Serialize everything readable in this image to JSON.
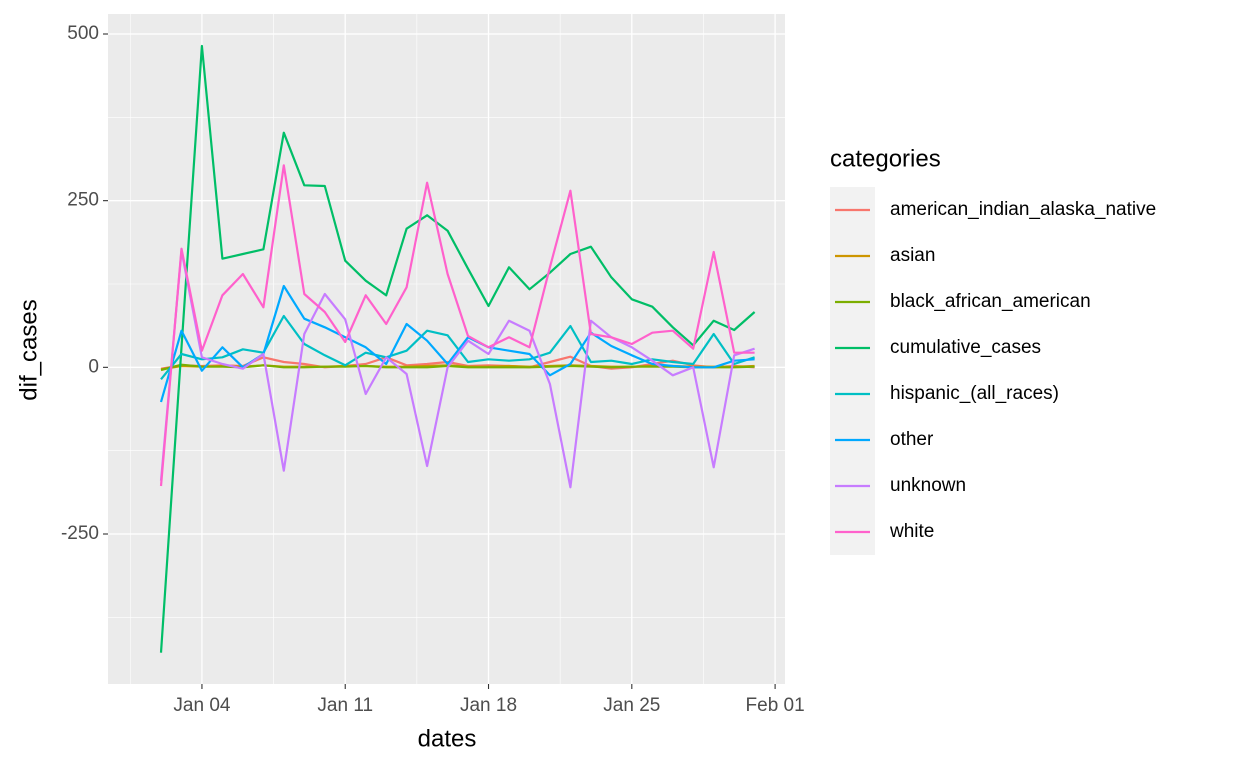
{
  "chart_data": {
    "type": "line",
    "x_label": "dates",
    "y_label": "dif_cases",
    "legend_title": "categories",
    "legend_position": "right",
    "grid": true,
    "x": [
      "Jan 02",
      "Jan 03",
      "Jan 04",
      "Jan 05",
      "Jan 06",
      "Jan 07",
      "Jan 08",
      "Jan 09",
      "Jan 10",
      "Jan 11",
      "Jan 12",
      "Jan 13",
      "Jan 14",
      "Jan 15",
      "Jan 16",
      "Jan 17",
      "Jan 18",
      "Jan 19",
      "Jan 20",
      "Jan 21",
      "Jan 22",
      "Jan 23",
      "Jan 24",
      "Jan 25",
      "Jan 26",
      "Jan 27",
      "Jan 28",
      "Jan 29",
      "Jan 30",
      "Jan 31"
    ],
    "xticks": [
      "Jan 04",
      "Jan 11",
      "Jan 18",
      "Jan 25",
      "Feb 01"
    ],
    "ylim": [
      -475,
      530
    ],
    "yticks": [
      -250,
      0,
      250,
      500
    ],
    "series": [
      {
        "name": "american_indian_alaska_native",
        "color": "#F8766D",
        "values": [
          -2,
          3,
          2,
          3,
          2,
          15,
          8,
          5,
          0,
          2,
          5,
          15,
          3,
          5,
          8,
          2,
          3,
          2,
          0,
          8,
          16,
          2,
          -2,
          0,
          5,
          10,
          3,
          0,
          2,
          0
        ]
      },
      {
        "name": "asian",
        "color": "#CD9600",
        "values": [
          -3,
          2,
          1,
          2,
          1,
          3,
          1,
          1,
          1,
          2,
          2,
          1,
          1,
          2,
          3,
          1,
          1,
          2,
          1,
          2,
          3,
          2,
          1,
          1,
          2,
          2,
          1,
          1,
          1,
          2
        ]
      },
      {
        "name": "black_african_american",
        "color": "#7CAE00",
        "values": [
          -4,
          4,
          1,
          1,
          0,
          3,
          0,
          0,
          1,
          1,
          2,
          0,
          0,
          0,
          2,
          0,
          0,
          0,
          0,
          1,
          2,
          1,
          0,
          1,
          1,
          1,
          0,
          0,
          0,
          1
        ]
      },
      {
        "name": "cumulative_cases",
        "color": "#00BE67",
        "values": [
          -428,
          30,
          482,
          163,
          170,
          177,
          352,
          273,
          272,
          160,
          130,
          108,
          208,
          228,
          205,
          148,
          92,
          150,
          117,
          142,
          170,
          181,
          135,
          102,
          91,
          60,
          33,
          70,
          56,
          83
        ]
      },
      {
        "name": "hispanic_(all_races)",
        "color": "#00BFC4",
        "values": [
          -18,
          20,
          12,
          15,
          27,
          22,
          77,
          35,
          18,
          3,
          22,
          15,
          25,
          55,
          48,
          8,
          12,
          10,
          12,
          22,
          62,
          8,
          10,
          5,
          12,
          8,
          5,
          50,
          5,
          15
        ]
      },
      {
        "name": "other",
        "color": "#00A9FF",
        "values": [
          -52,
          55,
          -5,
          30,
          0,
          20,
          122,
          73,
          60,
          45,
          30,
          5,
          65,
          40,
          5,
          45,
          30,
          25,
          20,
          -12,
          5,
          52,
          32,
          18,
          5,
          2,
          0,
          0,
          10,
          12
        ]
      },
      {
        "name": "unknown",
        "color": "#C77CFF",
        "values": [
          -170,
          175,
          15,
          5,
          -2,
          20,
          -155,
          50,
          110,
          72,
          -40,
          15,
          -10,
          -148,
          0,
          40,
          20,
          70,
          55,
          -25,
          -180,
          70,
          45,
          30,
          10,
          -12,
          0,
          -150,
          18,
          28
        ]
      },
      {
        "name": "white",
        "color": "#FF61CC",
        "values": [
          -178,
          178,
          25,
          108,
          140,
          90,
          303,
          110,
          83,
          38,
          108,
          65,
          120,
          277,
          140,
          47,
          30,
          45,
          30,
          150,
          265,
          50,
          45,
          35,
          52,
          55,
          28,
          173,
          22,
          22
        ]
      }
    ]
  }
}
